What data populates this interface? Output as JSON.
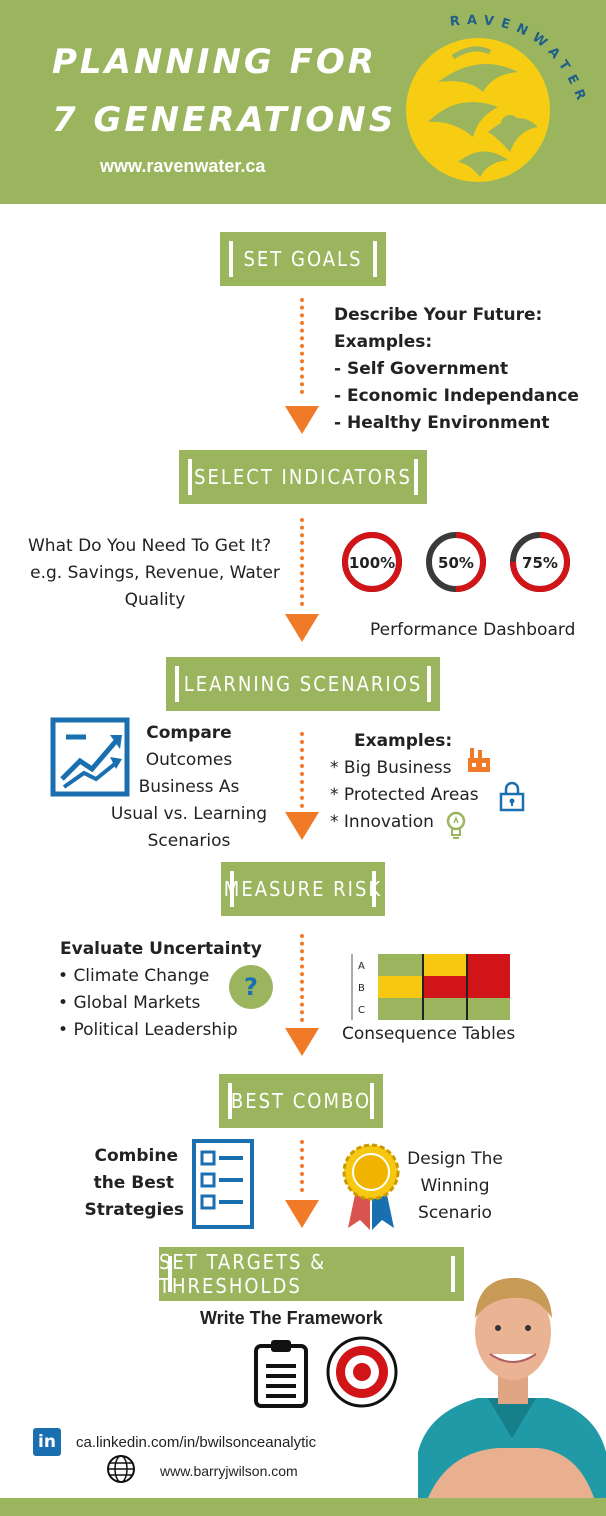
{
  "header": {
    "title_line1": "PLANNING FOR",
    "title_line2": "7 GENERATIONS",
    "url": "www.ravenwater.ca",
    "logo_text": "RAVENWATER"
  },
  "colors": {
    "green": "#9bb55f",
    "orange": "#f07a28",
    "red": "#d01418",
    "yellow": "#f6c812",
    "blue": "#1a6fb0"
  },
  "steps": {
    "set_goals": "SET GOALS",
    "select_indicators": "SELECT INDICATORS",
    "learning_scenarios": "LEARNING SCENARIOS",
    "measure_risk": "MEASURE RISK",
    "best_combo": "BEST COMBO",
    "targets": "SET TARGETS & THRESHOLDS"
  },
  "goals": {
    "line1": "Describe Your Future:",
    "line2": "Examples:",
    "items": [
      "- Self Government",
      "- Economic Independance",
      "- Healthy Environment"
    ]
  },
  "indicators": {
    "question": "What Do You Need To Get It?",
    "examples1": "e.g. Savings, Revenue, Water",
    "examples2": "Quality",
    "gauges": [
      {
        "label": "100%",
        "value": 1.0
      },
      {
        "label": "50%",
        "value": 0.5
      },
      {
        "label": "75%",
        "value": 0.75
      }
    ],
    "dashboard_label": "Performance Dashboard"
  },
  "scenarios": {
    "compare": "Compare",
    "line2": "Outcomes",
    "line3": "Business As",
    "line4": "Usual vs. Learning",
    "line5": "Scenarios",
    "examples_title": "Examples:",
    "examples": [
      "* Big Business",
      "* Protected Areas",
      "* Innovation"
    ]
  },
  "risk": {
    "title": "Evaluate Uncertainty",
    "items": [
      "Climate Change",
      "Global Markets",
      "Political Leadership"
    ],
    "question_mark": "?",
    "row_labels": [
      "A",
      "B",
      "C"
    ],
    "tables_label": "Consequence Tables"
  },
  "combo": {
    "left1": "Combine",
    "left2": "the Best",
    "left3": "Strategies",
    "right1": "Design The",
    "right2": "Winning",
    "right3": "Scenario"
  },
  "targets": {
    "subtitle": "Write The Framework"
  },
  "contact": {
    "linkedin_badge": "in",
    "linkedin": "ca.linkedin.com/in/bwilsonceanalytic",
    "website": "www.barryjwilson.com"
  }
}
